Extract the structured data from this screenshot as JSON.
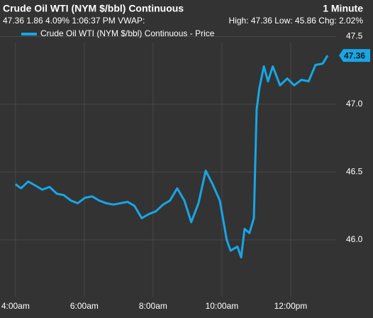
{
  "chart_data": {
    "type": "line",
    "title": "Crude Oil WTI (NYM $/bbl) Continuous",
    "interval": "1 Minute",
    "quote_line": "47.36 1.86 4.09% 1:06:37 PM VWAP:",
    "range_line": "High: 47.36 Low: 45.86 Chg: 2.02%",
    "last_price": 47.36,
    "grid": true,
    "x": [
      4.0,
      4.16,
      4.37,
      4.58,
      4.78,
      4.99,
      5.2,
      5.4,
      5.61,
      5.81,
      6.02,
      6.23,
      6.43,
      6.64,
      6.85,
      7.05,
      7.26,
      7.46,
      7.67,
      7.88,
      8.08,
      8.29,
      8.49,
      8.7,
      8.91,
      9.11,
      9.32,
      9.53,
      9.73,
      9.94,
      10.14,
      10.25,
      10.45,
      10.56,
      10.66,
      10.8,
      10.93,
      11.01,
      11.09,
      11.22,
      11.34,
      11.48,
      11.69,
      11.9,
      12.1,
      12.31,
      12.52,
      12.72,
      12.93,
      13.07
    ],
    "series": [
      {
        "name": "Crude Oil WTI (NYM $/bbl) Continuous - Price",
        "color": "#17a6e6",
        "values": [
          46.41,
          46.38,
          46.43,
          46.4,
          46.37,
          46.39,
          46.34,
          46.33,
          46.29,
          46.27,
          46.31,
          46.32,
          46.29,
          46.27,
          46.26,
          46.27,
          46.28,
          46.25,
          46.16,
          46.19,
          46.21,
          46.26,
          46.29,
          46.38,
          46.29,
          46.13,
          46.27,
          46.51,
          46.41,
          46.29,
          46.0,
          45.92,
          45.95,
          45.87,
          46.08,
          46.05,
          46.16,
          46.96,
          47.12,
          47.28,
          47.17,
          47.28,
          47.14,
          47.19,
          47.14,
          47.18,
          47.17,
          47.29,
          47.3,
          47.36
        ]
      }
    ],
    "xlim": [
      3.55,
      13.32
    ],
    "xticks": [
      {
        "value": 4,
        "label": "4:00am"
      },
      {
        "value": 6,
        "label": "6:00am"
      },
      {
        "value": 8,
        "label": "8:00am"
      },
      {
        "value": 10,
        "label": "10:00am"
      },
      {
        "value": 12,
        "label": "12:00pm"
      }
    ],
    "ylim": [
      45.58,
      47.56
    ],
    "yticks": [
      {
        "value": 46.0,
        "label": "46.0"
      },
      {
        "value": 46.5,
        "label": "46.5"
      },
      {
        "value": 47.0,
        "label": "47.0"
      },
      {
        "value": 47.5,
        "label": "47.5"
      }
    ]
  }
}
